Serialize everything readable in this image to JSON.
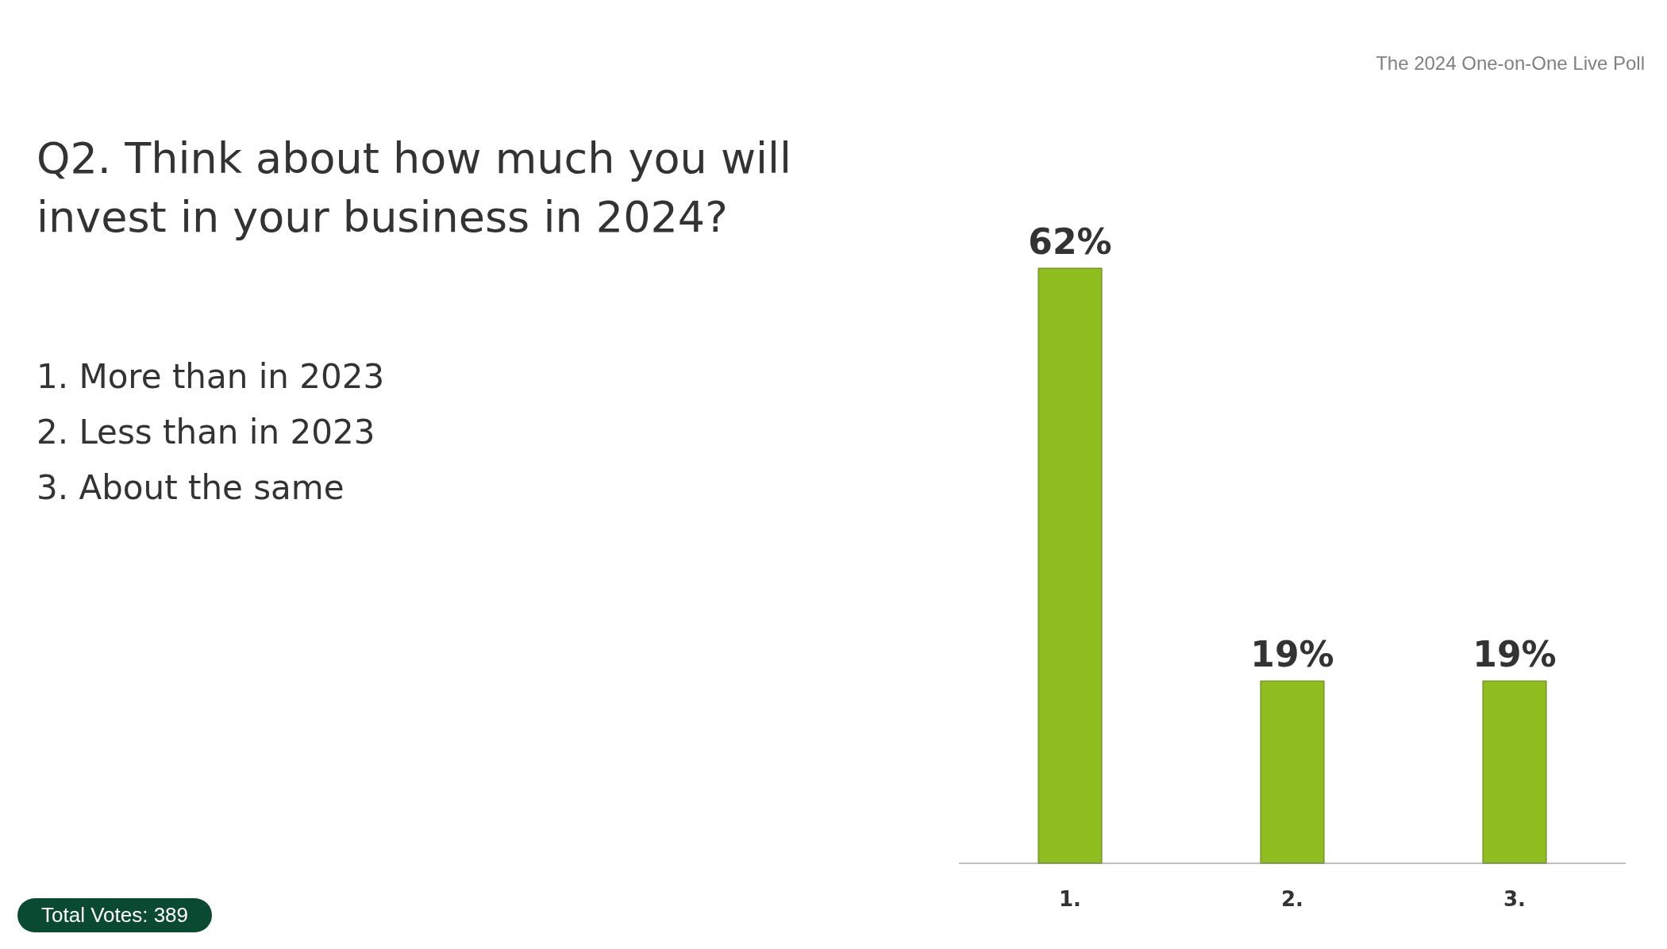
{
  "chart_data": {
    "type": "bar",
    "title": "Q2. Think about how much you will invest in your business in 2024?",
    "subtitle": "The 2024 One-on-One Live Poll",
    "annotations": [
      "1. More than in 2023",
      "2. Less than in 2023",
      "3. About the same",
      "Total Votes: 389"
    ],
    "categories": [
      "1.",
      "2.",
      "3."
    ],
    "values": [
      62,
      19,
      19
    ],
    "value_labels": [
      "62%",
      "19%",
      "19%"
    ],
    "color": "#8fbc1f",
    "tick_labels": "x",
    "grid": false,
    "legend": false
  }
}
